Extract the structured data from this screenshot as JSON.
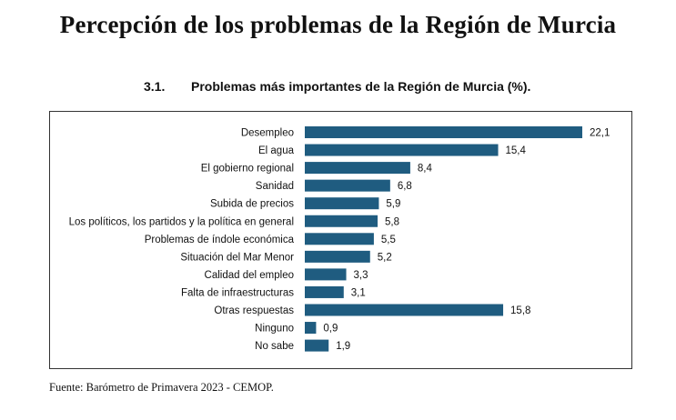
{
  "page": {
    "title": "Percepción de los problemas de la Región de Murcia",
    "section_number": "3.1.",
    "section_title": "Problemas más importantes de la Región de Murcia (%).",
    "source": "Fuente: Barómetro de Primavera 2023 - CEMOP."
  },
  "colors": {
    "bar": "#1f5c80"
  },
  "chart_data": {
    "type": "bar",
    "orientation": "horizontal",
    "title": "Problemas más importantes de la Región de Murcia (%).",
    "xlabel": "",
    "ylabel": "",
    "xlim": [
      0,
      24
    ],
    "grid": false,
    "legend": "none",
    "categories": [
      "Desempleo",
      "El agua",
      "El gobierno regional",
      "Sanidad",
      "Subida de precios",
      "Los políticos, los partidos y la política en general",
      "Problemas de índole económica",
      "Situación del Mar Menor",
      "Calidad del empleo",
      "Falta de infraestructuras",
      "Otras respuestas",
      "Ninguno",
      "No sabe"
    ],
    "values": [
      22.1,
      15.4,
      8.4,
      6.8,
      5.9,
      5.8,
      5.5,
      5.2,
      3.3,
      3.1,
      15.8,
      0.9,
      1.9
    ],
    "value_labels": [
      "22,1",
      "15,4",
      "8,4",
      "6,8",
      "5,9",
      "5,8",
      "5,5",
      "5,2",
      "3,3",
      "3,1",
      "15,8",
      "0,9",
      "1,9"
    ]
  }
}
